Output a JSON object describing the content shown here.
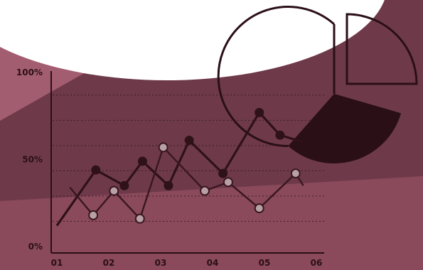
{
  "chart_data": [
    {
      "type": "line",
      "categories": [
        "01",
        "02",
        "03",
        "04",
        "05",
        "06"
      ],
      "y_tick_labels": [
        "100%",
        "50%",
        "0%"
      ],
      "ylim": [
        0,
        100
      ],
      "grid": true,
      "series": [
        {
          "style": "filled-markers",
          "color": "#2f1118",
          "x": [
            1.0,
            1.75,
            2.3,
            2.65,
            3.15,
            3.55,
            4.2,
            4.9,
            5.3,
            5.75
          ],
          "y": [
            12,
            44,
            35,
            49,
            35,
            61,
            42,
            77,
            64,
            60
          ]
        },
        {
          "style": "hollow-markers",
          "color": "#3a1620",
          "x": [
            1.25,
            1.7,
            2.1,
            2.6,
            3.05,
            3.85,
            4.3,
            4.9,
            5.6,
            5.75
          ],
          "y": [
            34,
            18,
            32,
            16,
            57,
            32,
            37,
            22,
            42,
            35
          ]
        }
      ]
    },
    {
      "type": "pie",
      "slices": [
        {
          "value": 8,
          "style": "dark-filled"
        },
        {
          "value": 17,
          "style": "outline"
        },
        {
          "value": 75,
          "style": "outline"
        }
      ]
    }
  ],
  "icons": [
    "pie-chart-icon"
  ],
  "colors": {
    "background": "#6e3a4a",
    "band_light": "#a35d70",
    "band_lower": "#8a4a5c",
    "ink": "#2a0f17",
    "circle": "#ffffff"
  }
}
